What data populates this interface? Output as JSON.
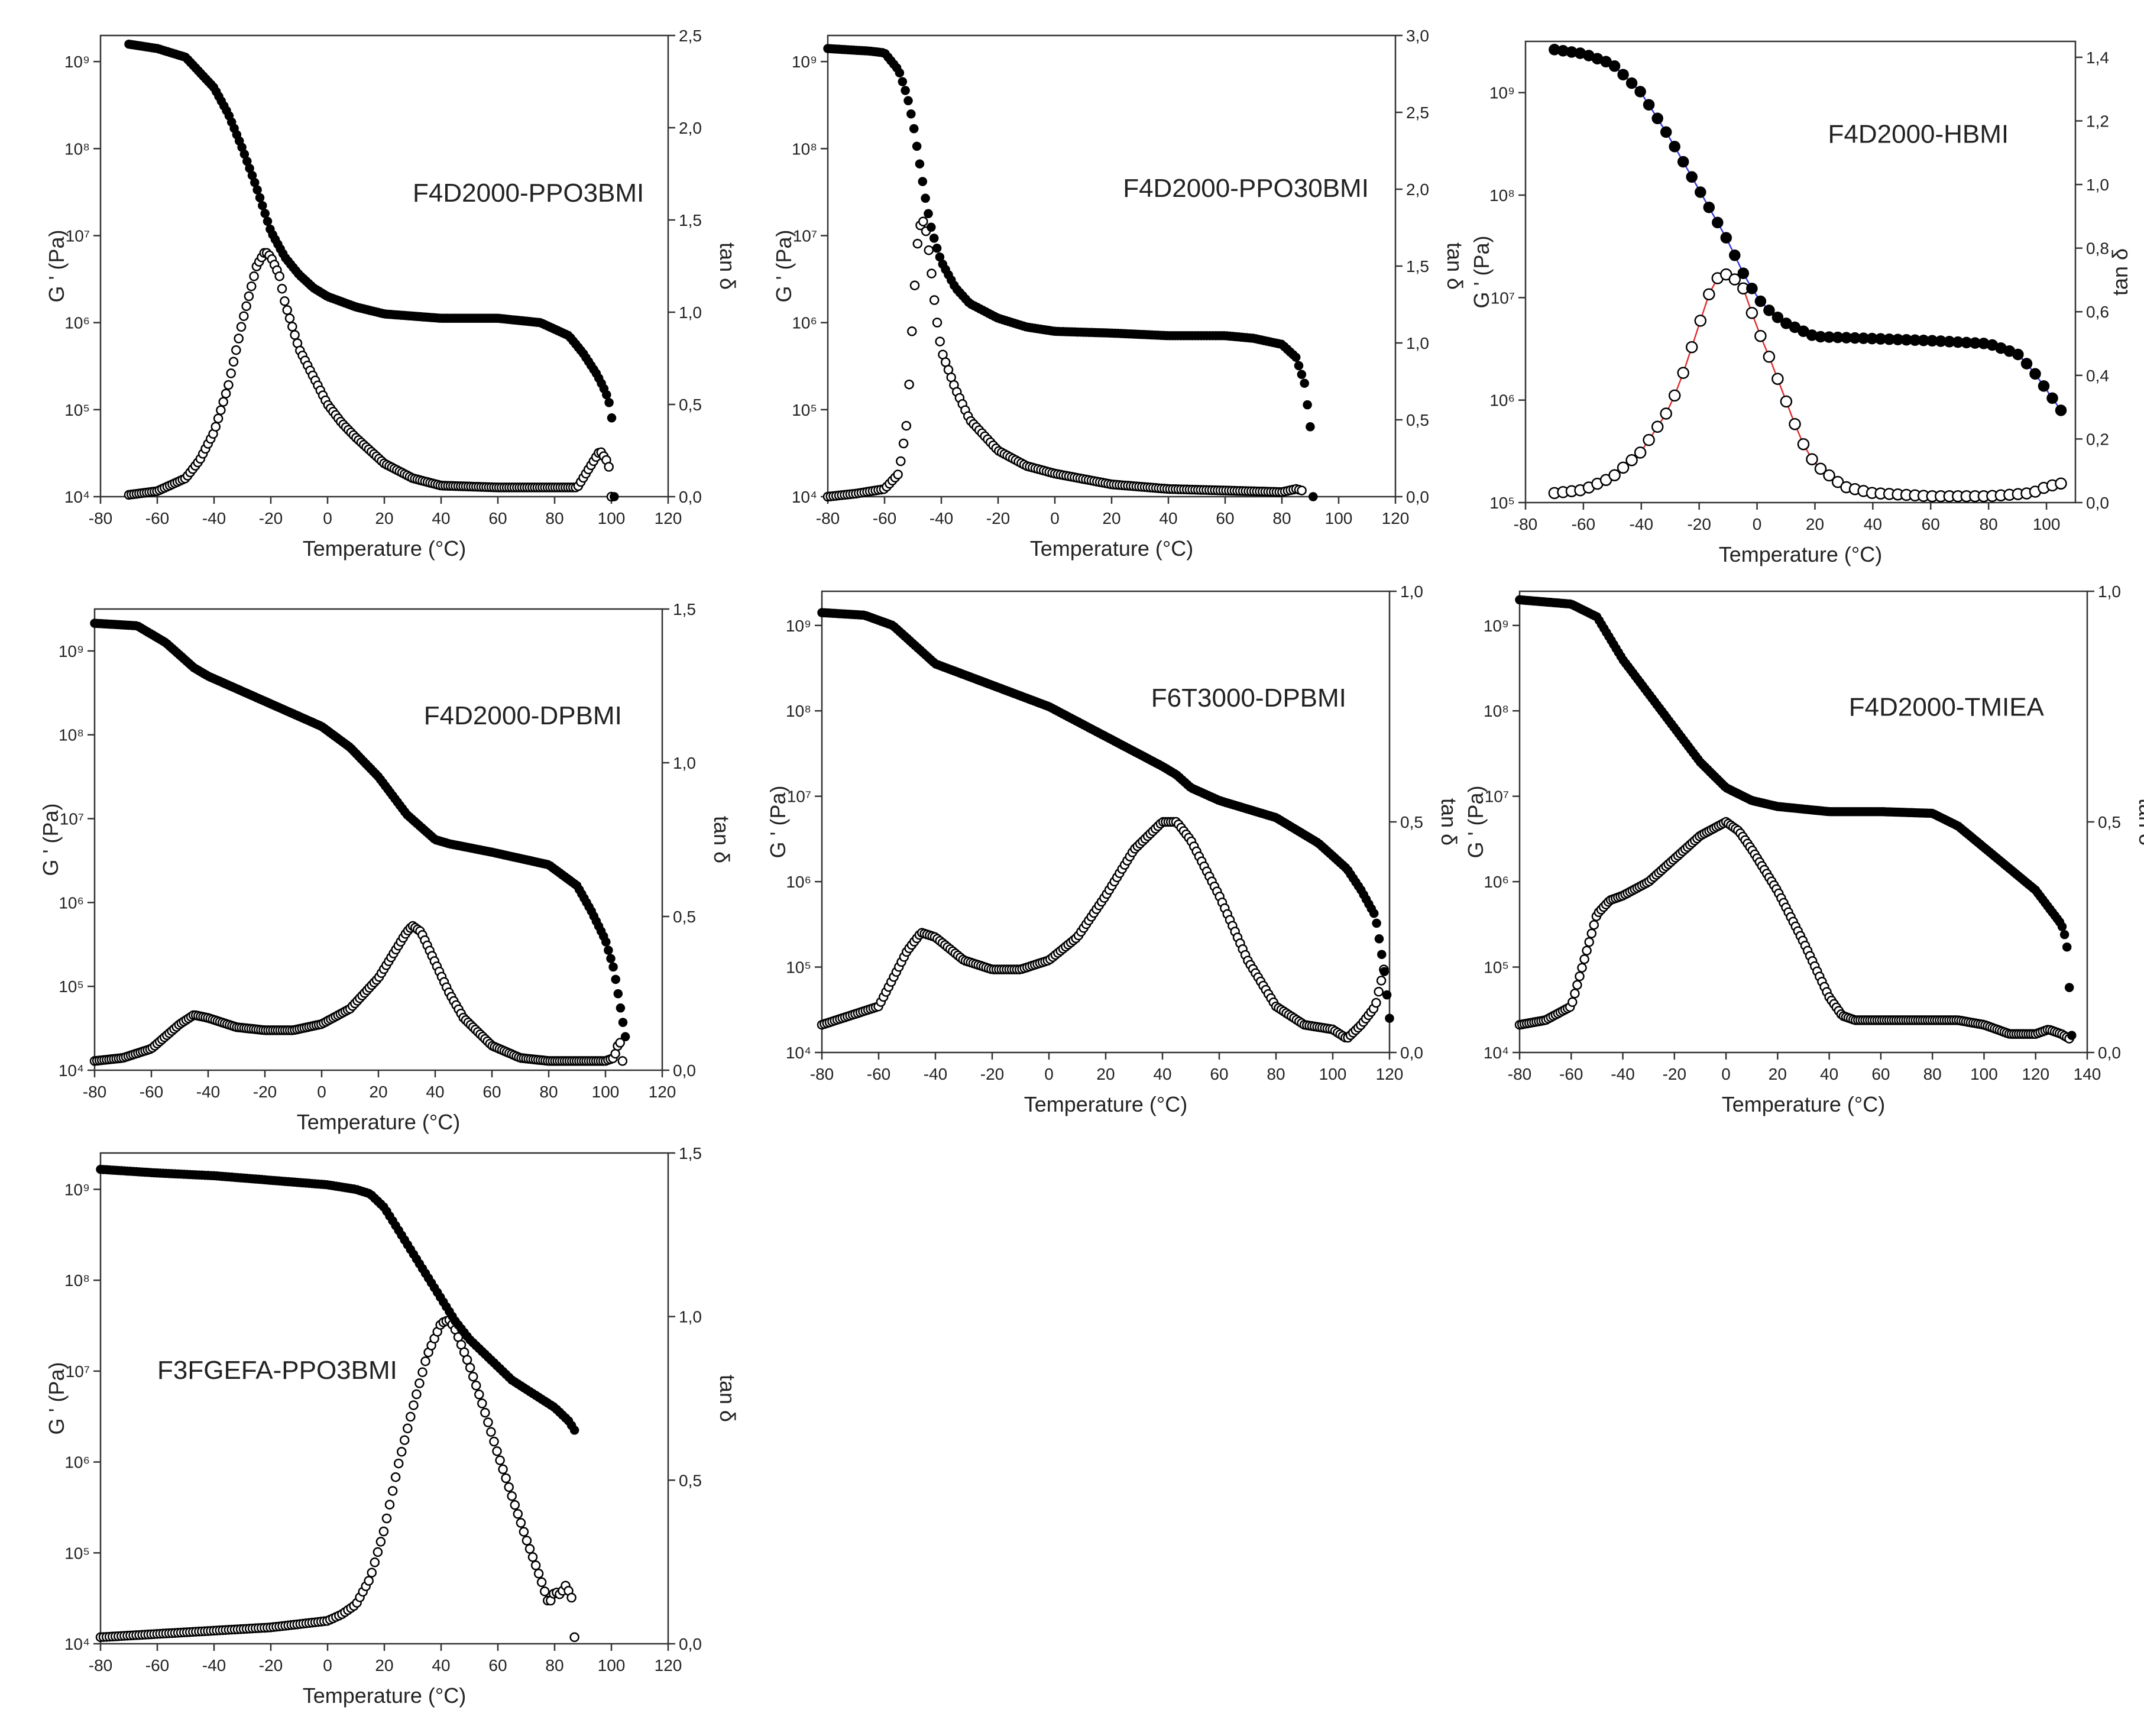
{
  "chart_data": [
    {
      "type": "scatter",
      "title": "F4D2000-PPO3BMI",
      "xlabel": "Temperature (°C)",
      "ylabel": "G ' (Pa)",
      "y2label": "tan δ",
      "xlim": [
        -80,
        120
      ],
      "xticks": [
        -80,
        -60,
        -40,
        -20,
        0,
        20,
        40,
        60,
        80,
        100,
        120
      ],
      "ylim_log": [
        4,
        9.3
      ],
      "yticks_exp": [
        4,
        5,
        6,
        7,
        8,
        9
      ],
      "y2lim": [
        0,
        2.5
      ],
      "y2ticks": [
        "0,0",
        "0,5",
        "1,0",
        "1,5",
        "2,0",
        "2,5"
      ],
      "series": [
        {
          "name": "G'",
          "marker": "filled",
          "n": 190,
          "x": [
            -70,
            -60,
            -50,
            -40,
            -35,
            -30,
            -25,
            -20,
            -15,
            -10,
            -5,
            0,
            10,
            20,
            40,
            60,
            75,
            85,
            90,
            95,
            98,
            100,
            101
          ],
          "log_y": [
            9.2,
            9.15,
            9.05,
            8.7,
            8.4,
            8.0,
            7.55,
            7.05,
            6.75,
            6.55,
            6.4,
            6.3,
            6.18,
            6.1,
            6.05,
            6.05,
            6.0,
            5.85,
            5.65,
            5.4,
            5.2,
            5.0,
            4.0
          ]
        },
        {
          "name": "tan δ",
          "marker": "open",
          "n": 190,
          "x": [
            -70,
            -60,
            -50,
            -45,
            -40,
            -35,
            -30,
            -25,
            -22,
            -20,
            -17,
            -15,
            -10,
            -5,
            0,
            5,
            10,
            20,
            30,
            40,
            60,
            80,
            88,
            92,
            96,
            99,
            100
          ],
          "y": [
            0.01,
            0.03,
            0.1,
            0.2,
            0.35,
            0.6,
            0.95,
            1.25,
            1.33,
            1.3,
            1.2,
            1.05,
            0.8,
            0.65,
            0.5,
            0.4,
            0.32,
            0.18,
            0.1,
            0.06,
            0.05,
            0.05,
            0.05,
            0.15,
            0.25,
            0.18,
            0.0
          ]
        }
      ]
    },
    {
      "type": "scatter",
      "title": "F4D2000-PPO30BMI",
      "xlabel": "Temperature (°C)",
      "ylabel": "G ' (Pa)",
      "y2label": "tan δ",
      "xlim": [
        -80,
        120
      ],
      "xticks": [
        -80,
        -60,
        -40,
        -20,
        0,
        20,
        40,
        60,
        80,
        100,
        120
      ],
      "ylim_log": [
        4,
        9.3
      ],
      "yticks_exp": [
        4,
        5,
        6,
        7,
        8,
        9
      ],
      "y2lim": [
        0,
        3.0
      ],
      "y2ticks": [
        "0,0",
        "0,5",
        "1,0",
        "1,5",
        "2,0",
        "2,5",
        "3,0"
      ],
      "series": [
        {
          "name": "G'",
          "marker": "filled",
          "n": 170,
          "x": [
            -80,
            -65,
            -60,
            -55,
            -52,
            -50,
            -48,
            -46,
            -44,
            -42,
            -40,
            -35,
            -30,
            -20,
            -10,
            0,
            20,
            40,
            60,
            70,
            80,
            85,
            88,
            90,
            91
          ],
          "log_y": [
            9.15,
            9.12,
            9.1,
            8.9,
            8.6,
            8.3,
            7.9,
            7.5,
            7.15,
            6.9,
            6.7,
            6.4,
            6.22,
            6.05,
            5.95,
            5.9,
            5.88,
            5.85,
            5.85,
            5.82,
            5.75,
            5.6,
            5.3,
            4.8,
            4.0
          ]
        },
        {
          "name": "tan δ",
          "marker": "open",
          "n": 170,
          "x": [
            -80,
            -70,
            -60,
            -55,
            -52,
            -50,
            -48,
            -46,
            -44,
            -42,
            -40,
            -35,
            -30,
            -20,
            -10,
            0,
            20,
            40,
            60,
            80,
            85,
            87
          ],
          "y": [
            0.0,
            0.02,
            0.05,
            0.15,
            0.5,
            1.2,
            1.75,
            1.8,
            1.55,
            1.2,
            0.95,
            0.7,
            0.5,
            0.3,
            0.2,
            0.15,
            0.08,
            0.05,
            0.04,
            0.03,
            0.05,
            0.04
          ]
        }
      ]
    },
    {
      "type": "scatter",
      "title": "F4D2000-HBMI",
      "xlabel": "Temperature (°C)",
      "ylabel": "G ' (Pa)",
      "y2label": "tan δ",
      "xlim": [
        -80,
        110
      ],
      "xticks": [
        -80,
        -60,
        -40,
        -20,
        0,
        20,
        40,
        60,
        80,
        100
      ],
      "ylim_log": [
        5,
        9.5
      ],
      "yticks_exp": [
        5,
        6,
        7,
        8,
        9
      ],
      "y2lim": [
        0,
        1.45
      ],
      "y2ticks": [
        "0,0",
        "0,2",
        "0,4",
        "0,6",
        "0,8",
        "1,0",
        "1,2",
        "1,4"
      ],
      "connector_colors": {
        "gp": "#3a3adb",
        "tand": "#e03030"
      },
      "series": [
        {
          "name": "G'",
          "marker": "filled",
          "n": 60,
          "x": [
            -70,
            -60,
            -50,
            -40,
            -30,
            -20,
            -15,
            -10,
            -5,
            0,
            5,
            10,
            20,
            40,
            60,
            80,
            90,
            95,
            100,
            105
          ],
          "log_y": [
            9.42,
            9.38,
            9.28,
            9.0,
            8.55,
            8.05,
            7.8,
            7.55,
            7.25,
            7.0,
            6.85,
            6.75,
            6.62,
            6.6,
            6.58,
            6.55,
            6.45,
            6.3,
            6.1,
            5.9
          ]
        },
        {
          "name": "tan δ",
          "marker": "open",
          "n": 60,
          "x": [
            -70,
            -60,
            -50,
            -40,
            -30,
            -25,
            -20,
            -15,
            -10,
            -5,
            0,
            5,
            10,
            15,
            20,
            30,
            40,
            60,
            80,
            95,
            100,
            105
          ],
          "y": [
            0.03,
            0.04,
            0.08,
            0.16,
            0.3,
            0.42,
            0.56,
            0.7,
            0.72,
            0.68,
            0.55,
            0.44,
            0.32,
            0.2,
            0.12,
            0.05,
            0.03,
            0.02,
            0.02,
            0.03,
            0.05,
            0.06
          ]
        }
      ]
    },
    {
      "type": "scatter",
      "title": "F4D2000-DPBMI",
      "xlabel": "Temperature (°C)",
      "ylabel": "G ' (Pa)",
      "y2label": "tan δ",
      "xlim": [
        -80,
        120
      ],
      "xticks": [
        -80,
        -60,
        -40,
        -20,
        0,
        20,
        40,
        60,
        80,
        100,
        120
      ],
      "ylim_log": [
        4,
        9.5
      ],
      "yticks_exp": [
        4,
        5,
        6,
        7,
        8,
        9
      ],
      "y2lim": [
        0,
        1.5
      ],
      "y2ticks": [
        "0,0",
        "0,5",
        "1,0",
        "1,5"
      ],
      "series": [
        {
          "name": "G'",
          "marker": "filled",
          "n": 220,
          "x": [
            -80,
            -65,
            -55,
            -45,
            -40,
            -20,
            0,
            10,
            20,
            30,
            40,
            45,
            60,
            80,
            90,
            95,
            100,
            103,
            105,
            107
          ],
          "log_y": [
            9.33,
            9.3,
            9.1,
            8.8,
            8.7,
            8.4,
            8.1,
            7.85,
            7.5,
            7.05,
            6.75,
            6.7,
            6.6,
            6.45,
            6.2,
            5.9,
            5.55,
            5.2,
            4.8,
            4.4
          ]
        },
        {
          "name": "tan δ",
          "marker": "open",
          "n": 220,
          "x": [
            -80,
            -70,
            -60,
            -50,
            -45,
            -40,
            -30,
            -20,
            -10,
            0,
            10,
            20,
            30,
            32,
            35,
            40,
            45,
            50,
            60,
            70,
            80,
            90,
            100,
            103,
            105,
            106
          ],
          "y": [
            0.03,
            0.04,
            0.07,
            0.15,
            0.18,
            0.17,
            0.14,
            0.13,
            0.13,
            0.15,
            0.2,
            0.3,
            0.45,
            0.47,
            0.45,
            0.35,
            0.25,
            0.17,
            0.08,
            0.04,
            0.03,
            0.03,
            0.03,
            0.04,
            0.1,
            0.03
          ]
        }
      ]
    },
    {
      "type": "scatter",
      "title": "F6T3000-DPBMI",
      "xlabel": "Temperature (°C)",
      "ylabel": "G ' (Pa)",
      "y2label": "tan δ",
      "xlim": [
        -80,
        120
      ],
      "xticks": [
        -80,
        -60,
        -40,
        -20,
        0,
        20,
        40,
        60,
        80,
        100,
        120
      ],
      "ylim_log": [
        4,
        9.4
      ],
      "yticks_exp": [
        4,
        5,
        6,
        7,
        8,
        9
      ],
      "y2lim": [
        0,
        1.0
      ],
      "y2ticks": [
        "0,0",
        "0,5",
        "1,0"
      ],
      "series": [
        {
          "name": "G'",
          "marker": "filled",
          "n": 220,
          "x": [
            -80,
            -65,
            -55,
            -45,
            -40,
            -20,
            0,
            20,
            40,
            45,
            50,
            60,
            80,
            95,
            105,
            110,
            115,
            118,
            120
          ],
          "log_y": [
            9.15,
            9.12,
            9.0,
            8.7,
            8.55,
            8.3,
            8.05,
            7.7,
            7.35,
            7.25,
            7.1,
            6.95,
            6.75,
            6.45,
            6.15,
            5.9,
            5.6,
            5.0,
            4.4
          ]
        },
        {
          "name": "tan δ",
          "marker": "open",
          "n": 220,
          "x": [
            -80,
            -70,
            -60,
            -50,
            -45,
            -40,
            -30,
            -20,
            -10,
            0,
            10,
            20,
            30,
            40,
            45,
            50,
            60,
            70,
            80,
            90,
            100,
            105,
            110,
            115,
            118
          ],
          "y": [
            0.06,
            0.08,
            0.1,
            0.22,
            0.26,
            0.25,
            0.2,
            0.18,
            0.18,
            0.2,
            0.25,
            0.34,
            0.44,
            0.5,
            0.5,
            0.46,
            0.34,
            0.2,
            0.1,
            0.06,
            0.05,
            0.03,
            0.06,
            0.1,
            0.18
          ]
        }
      ]
    },
    {
      "type": "scatter",
      "title": "F4D2000-TMIEA",
      "xlabel": "Temperature (°C)",
      "ylabel": "G ' (Pa)",
      "y2label": "tan δ",
      "xlim": [
        -80,
        140
      ],
      "xticks": [
        -80,
        -60,
        -40,
        -20,
        0,
        20,
        40,
        60,
        80,
        100,
        120,
        140
      ],
      "ylim_log": [
        4,
        9.4
      ],
      "yticks_exp": [
        4,
        5,
        6,
        7,
        8,
        9
      ],
      "y2lim": [
        0,
        1.0
      ],
      "y2ticks": [
        "0,0",
        "0,5",
        "1,0"
      ],
      "series": [
        {
          "name": "G'",
          "marker": "filled",
          "n": 230,
          "x": [
            -80,
            -60,
            -50,
            -45,
            -40,
            -30,
            -20,
            -10,
            0,
            10,
            20,
            40,
            60,
            80,
            90,
            100,
            110,
            120,
            125,
            130,
            132,
            133,
            134
          ],
          "log_y": [
            9.3,
            9.25,
            9.1,
            8.85,
            8.6,
            8.2,
            7.8,
            7.4,
            7.1,
            6.95,
            6.88,
            6.82,
            6.82,
            6.8,
            6.65,
            6.4,
            6.15,
            5.9,
            5.7,
            5.5,
            5.3,
            4.8,
            4.2
          ]
        },
        {
          "name": "tan δ",
          "marker": "open",
          "n": 230,
          "x": [
            -80,
            -70,
            -60,
            -55,
            -50,
            -45,
            -40,
            -30,
            -20,
            -10,
            0,
            5,
            10,
            20,
            30,
            40,
            45,
            50,
            60,
            80,
            90,
            100,
            110,
            120,
            125,
            130,
            133
          ],
          "y": [
            0.06,
            0.07,
            0.1,
            0.2,
            0.3,
            0.33,
            0.34,
            0.37,
            0.42,
            0.47,
            0.5,
            0.48,
            0.44,
            0.35,
            0.24,
            0.12,
            0.08,
            0.07,
            0.07,
            0.07,
            0.07,
            0.06,
            0.04,
            0.04,
            0.05,
            0.04,
            0.03
          ]
        }
      ]
    },
    {
      "type": "scatter",
      "title": "F3FGEFA-PPO3BMI",
      "xlabel": "Temperature (°C)",
      "ylabel": "G ' (Pa)",
      "y2label": "tan δ",
      "xlim": [
        -80,
        120
      ],
      "xticks": [
        -80,
        -60,
        -40,
        -20,
        0,
        20,
        40,
        60,
        80,
        100,
        120
      ],
      "ylim_log": [
        4,
        9.4
      ],
      "yticks_exp": [
        4,
        5,
        6,
        7,
        8,
        9
      ],
      "y2lim": [
        0,
        1.5
      ],
      "y2ticks": [
        "0,0",
        "0,5",
        "1,0",
        "1,5"
      ],
      "series": [
        {
          "name": "G'",
          "marker": "filled",
          "n": 160,
          "x": [
            -80,
            -60,
            -40,
            -20,
            0,
            10,
            15,
            20,
            25,
            30,
            35,
            40,
            45,
            50,
            55,
            60,
            65,
            70,
            75,
            80,
            85,
            87
          ],
          "log_y": [
            9.22,
            9.18,
            9.15,
            9.1,
            9.05,
            9.0,
            8.95,
            8.8,
            8.55,
            8.3,
            8.05,
            7.8,
            7.55,
            7.35,
            7.2,
            7.05,
            6.9,
            6.8,
            6.7,
            6.6,
            6.45,
            6.35
          ]
        },
        {
          "name": "tan δ",
          "marker": "open",
          "n": 160,
          "x": [
            -80,
            -60,
            -40,
            -20,
            0,
            5,
            10,
            15,
            20,
            25,
            30,
            35,
            40,
            43,
            45,
            50,
            55,
            60,
            65,
            70,
            75,
            78,
            80,
            82,
            84,
            86,
            87
          ],
          "y": [
            0.02,
            0.03,
            0.04,
            0.05,
            0.07,
            0.09,
            0.12,
            0.2,
            0.35,
            0.55,
            0.72,
            0.88,
            0.98,
            0.99,
            0.96,
            0.85,
            0.72,
            0.58,
            0.45,
            0.32,
            0.2,
            0.12,
            0.16,
            0.15,
            0.18,
            0.14,
            0.02
          ]
        }
      ]
    }
  ]
}
